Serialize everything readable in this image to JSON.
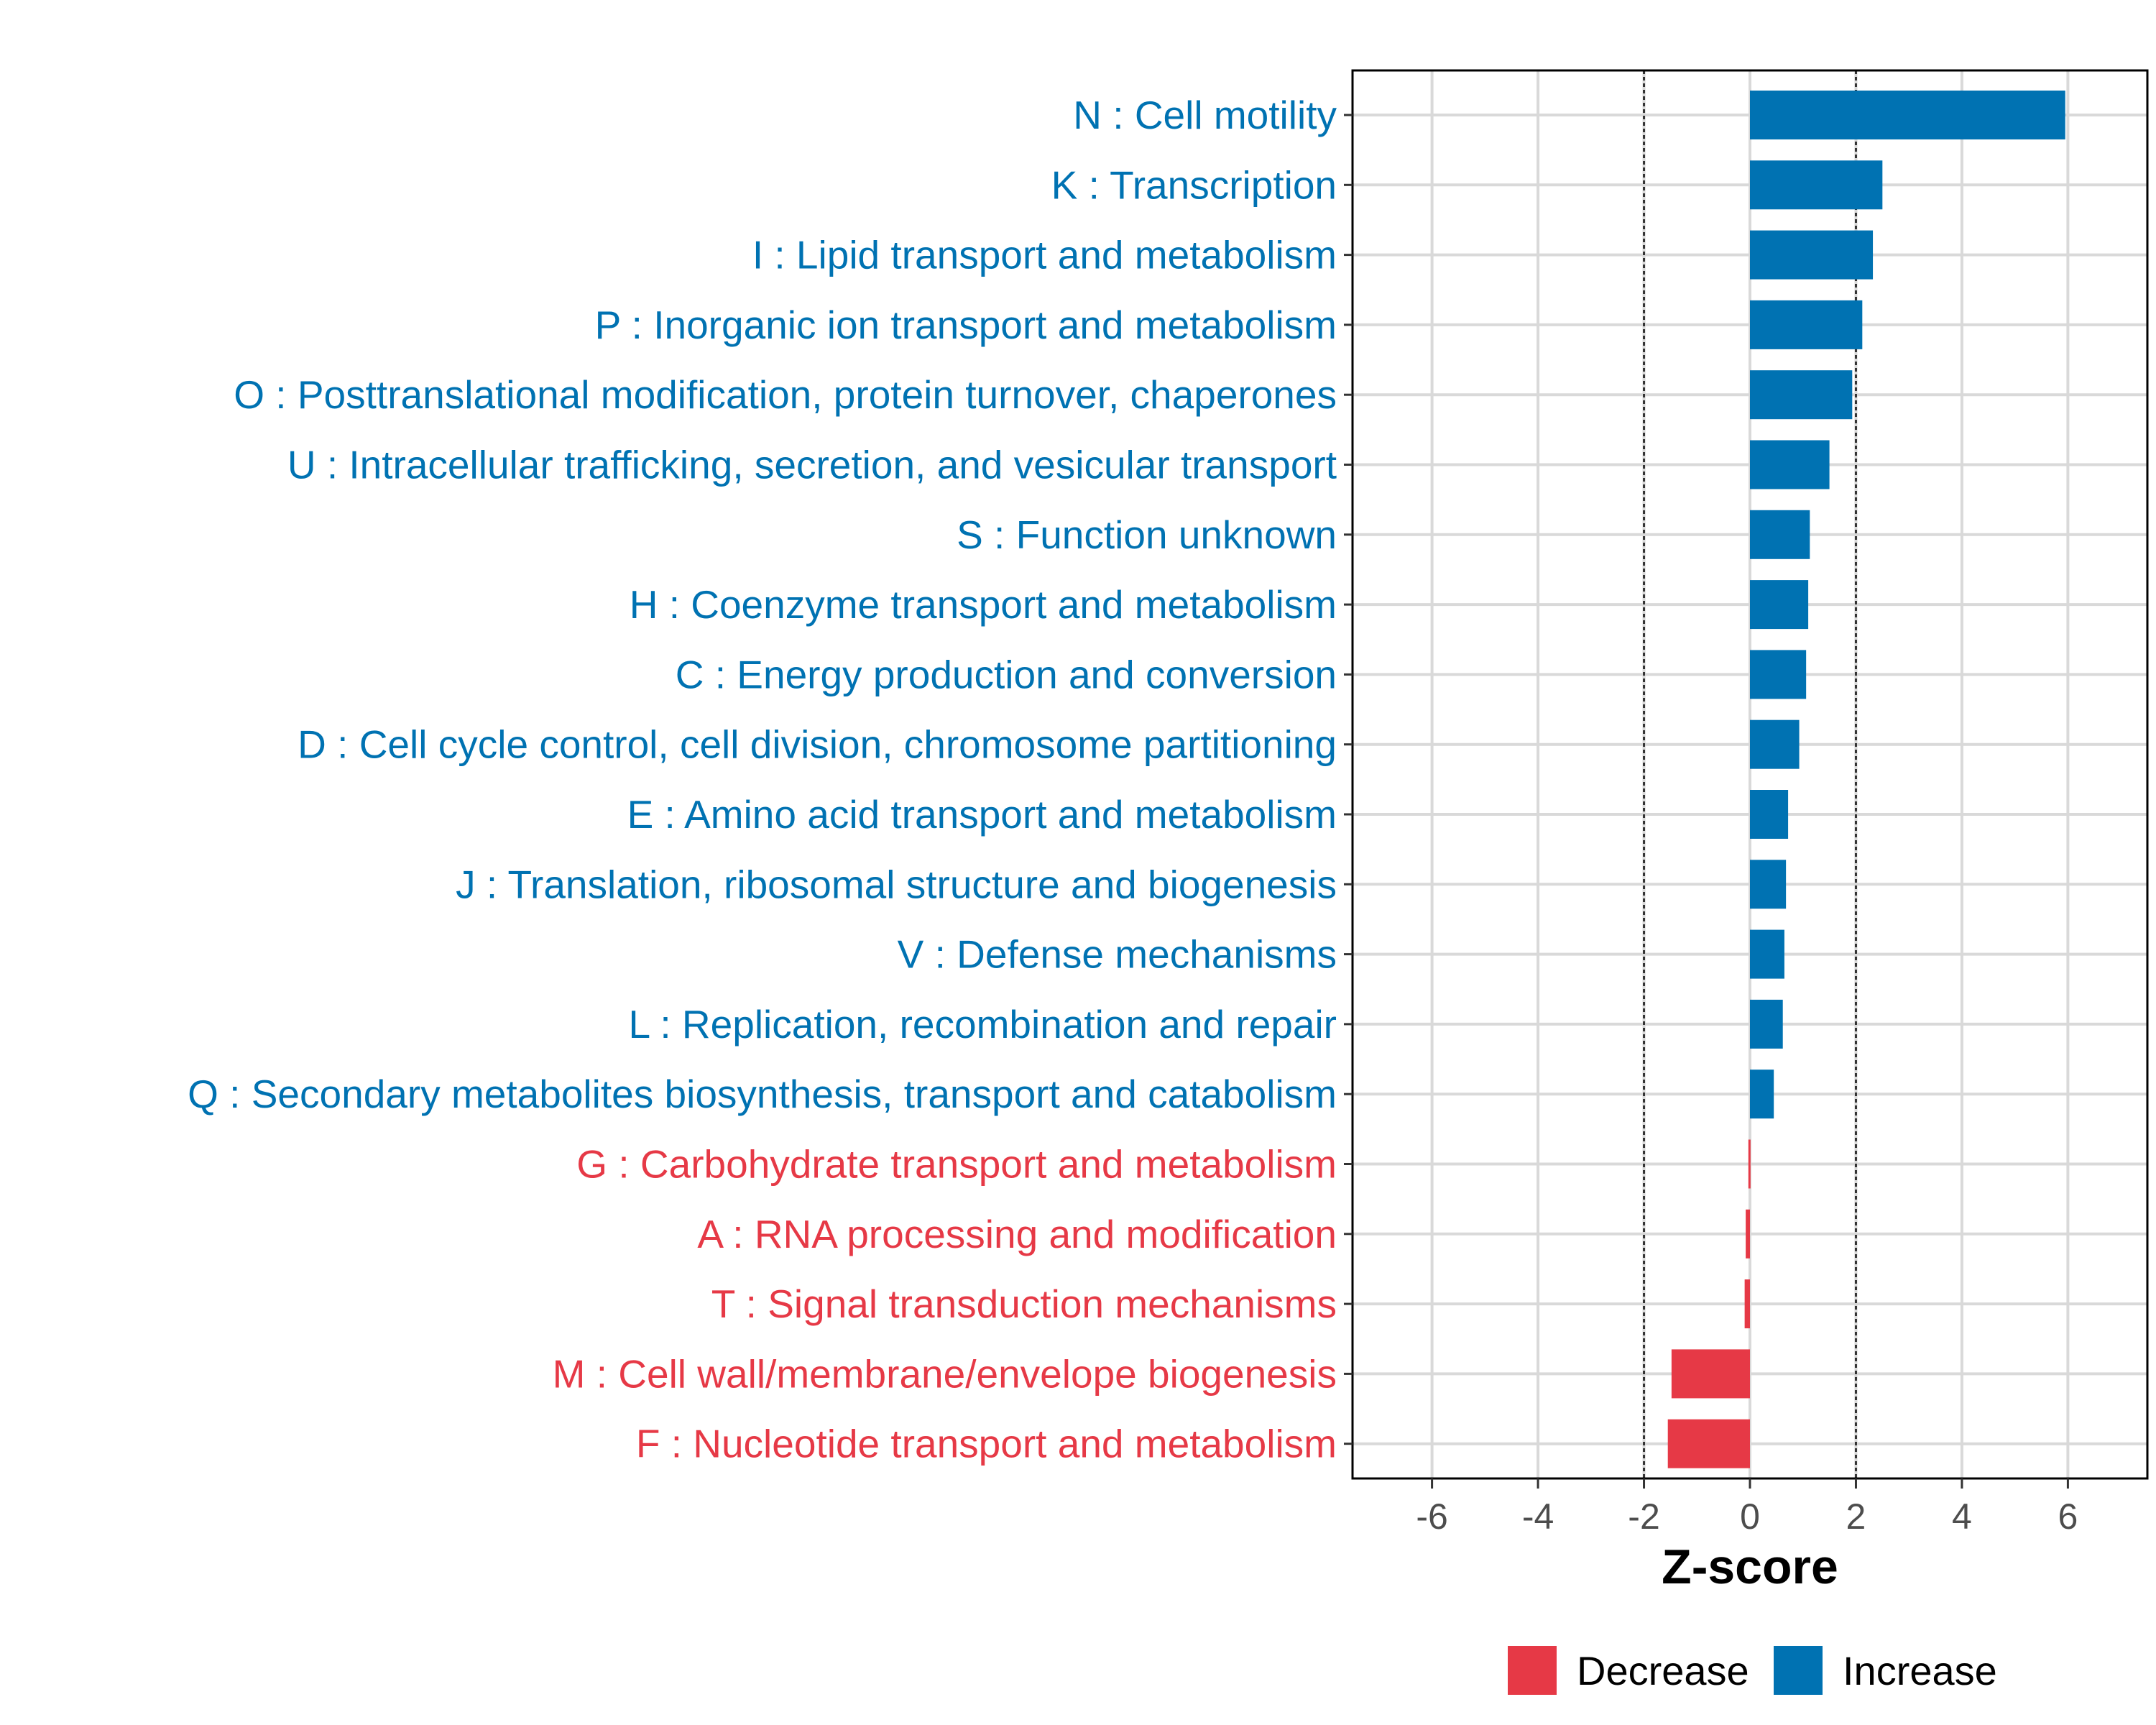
{
  "chart_data": {
    "type": "bar",
    "orientation": "horizontal",
    "xlabel": "Z-score",
    "xlim": [
      -7.5,
      7.5
    ],
    "xticks": [
      -6,
      -4,
      -2,
      0,
      2,
      4,
      6
    ],
    "threshold_lines": [
      -2,
      2
    ],
    "grid": true,
    "colors": {
      "Increase": "#0072B2",
      "Decrease": "#E63946"
    },
    "legend": {
      "position": "bottom",
      "entries": [
        {
          "label": "Decrease",
          "color": "#E63946"
        },
        {
          "label": "Increase",
          "color": "#0072B2"
        }
      ]
    },
    "categories": [
      {
        "label": "N : Cell motility",
        "value": 5.95,
        "direction": "Increase"
      },
      {
        "label": "K : Transcription",
        "value": 2.5,
        "direction": "Increase"
      },
      {
        "label": "I : Lipid transport and metabolism",
        "value": 2.32,
        "direction": "Increase"
      },
      {
        "label": "P : Inorganic ion transport and metabolism",
        "value": 2.12,
        "direction": "Increase"
      },
      {
        "label": "O : Posttranslational modification, protein turnover, chaperones",
        "value": 1.93,
        "direction": "Increase"
      },
      {
        "label": "U : Intracellular trafficking, secretion, and vesicular transport",
        "value": 1.5,
        "direction": "Increase"
      },
      {
        "label": "S : Function unknown",
        "value": 1.13,
        "direction": "Increase"
      },
      {
        "label": "H : Coenzyme transport and metabolism",
        "value": 1.1,
        "direction": "Increase"
      },
      {
        "label": "C : Energy production and conversion",
        "value": 1.06,
        "direction": "Increase"
      },
      {
        "label": "D : Cell cycle control, cell division, chromosome partitioning",
        "value": 0.93,
        "direction": "Increase"
      },
      {
        "label": "E : Amino acid transport and metabolism",
        "value": 0.72,
        "direction": "Increase"
      },
      {
        "label": "J : Translation, ribosomal structure and biogenesis",
        "value": 0.68,
        "direction": "Increase"
      },
      {
        "label": "V : Defense mechanisms",
        "value": 0.65,
        "direction": "Increase"
      },
      {
        "label": "L : Replication, recombination and repair",
        "value": 0.62,
        "direction": "Increase"
      },
      {
        "label": "Q : Secondary metabolites biosynthesis, transport and catabolism",
        "value": 0.45,
        "direction": "Increase"
      },
      {
        "label": "G : Carbohydrate transport and metabolism",
        "value": -0.03,
        "direction": "Decrease"
      },
      {
        "label": "A : RNA processing and modification",
        "value": -0.08,
        "direction": "Decrease"
      },
      {
        "label": "T : Signal transduction mechanisms",
        "value": -0.1,
        "direction": "Decrease"
      },
      {
        "label": "M : Cell wall/membrane/envelope biogenesis",
        "value": -1.48,
        "direction": "Decrease"
      },
      {
        "label": "F : Nucleotide transport and metabolism",
        "value": -1.55,
        "direction": "Decrease"
      }
    ]
  }
}
